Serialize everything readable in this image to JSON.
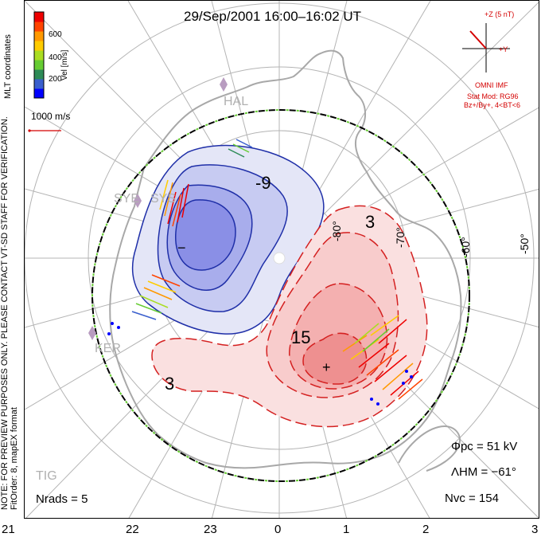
{
  "title": "29/Sep/2001  16:00–16:02  UT",
  "side_note_line1": "NOTE: FOR PREVIEW PURPOSES ONLY. PLEASE CONTACT VT-SD STAFF FOR VERIFICATION.",
  "side_note_line2": "FitOrder: 8, mapEX format",
  "coord_system": "MLT coordinates",
  "colorbar": {
    "label": "Vel [m/s]",
    "ticks": [
      "600",
      "400",
      "200"
    ],
    "colors": [
      "#0000ff",
      "#3a5fcd",
      "#2e8b57",
      "#66cc33",
      "#aadd22",
      "#ffcc00",
      "#ff9900",
      "#ff4400",
      "#ee0000"
    ]
  },
  "reference_vector": "1000 m/s",
  "imf": {
    "z_label": "+Z (5 nT)",
    "y_label": "+Y",
    "source": "OMNI IMF",
    "stat_mod": "Stat Mod: RG96",
    "condition": "Bz+/By+, 4<BT<6"
  },
  "stats": {
    "phi_pc": "Φpc  =  51 kV",
    "lambda_hm": "ΛHM  =  −61°",
    "n_vc": "Nvc  =  154",
    "n_rads": "Nrads  =  5"
  },
  "mlt_ticks": [
    "21",
    "22",
    "23",
    "0",
    "1",
    "2",
    "3"
  ],
  "lat_labels": [
    "-50°",
    "-60°",
    "-70°",
    "-80°"
  ],
  "stations": [
    "HAL",
    "SYE",
    "SYS",
    "KER",
    "TIG"
  ],
  "contour_labels": [
    "-9",
    "3",
    "15",
    "3"
  ],
  "potential_extrema": [
    "−",
    "+"
  ],
  "colors": {
    "negative_contour": "#1f2fa8",
    "positive_contour": "#d42020",
    "boundary": "#000000",
    "boundary_dash": "#66cc33",
    "land": "#a8a8a8",
    "grid": "#b4b4b4"
  }
}
